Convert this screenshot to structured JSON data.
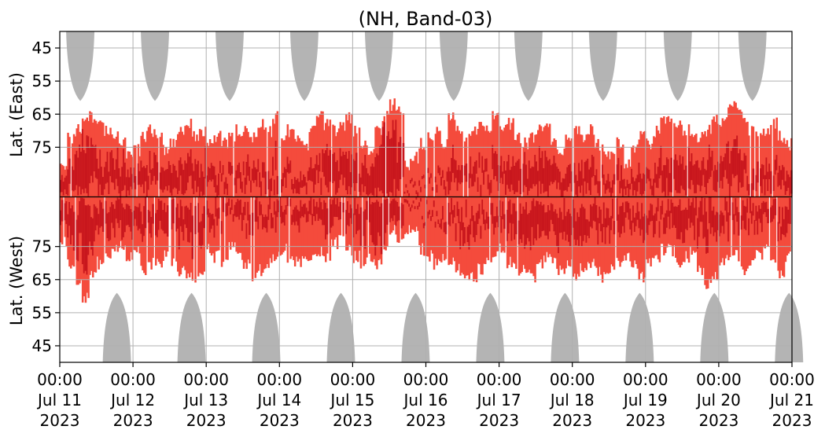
{
  "chart_data": {
    "type": "heatmap",
    "title": "(NH, Band-03)",
    "y_upper_label": "Lat. (East)",
    "y_lower_label": "Lat. (West)",
    "y_upper_ticks": [
      "45",
      "55",
      "65",
      "75"
    ],
    "y_lower_ticks": [
      "75",
      "65",
      "55",
      "45"
    ],
    "y_upper_tick_values": [
      45,
      55,
      65,
      75
    ],
    "y_lower_tick_values": [
      75,
      65,
      55,
      45
    ],
    "x_ticks": [
      {
        "time": "00:00",
        "date": "Jul 11",
        "year": "2023"
      },
      {
        "time": "00:00",
        "date": "Jul 12",
        "year": "2023"
      },
      {
        "time": "00:00",
        "date": "Jul 13",
        "year": "2023"
      },
      {
        "time": "00:00",
        "date": "Jul 14",
        "year": "2023"
      },
      {
        "time": "00:00",
        "date": "Jul 15",
        "year": "2023"
      },
      {
        "time": "00:00",
        "date": "Jul 16",
        "year": "2023"
      },
      {
        "time": "00:00",
        "date": "Jul 17",
        "year": "2023"
      },
      {
        "time": "00:00",
        "date": "Jul 18",
        "year": "2023"
      },
      {
        "time": "00:00",
        "date": "Jul 19",
        "year": "2023"
      },
      {
        "time": "00:00",
        "date": "Jul 20",
        "year": "2023"
      },
      {
        "time": "00:00",
        "date": "Jul 21",
        "year": "2023"
      }
    ],
    "x_range": [
      "2023-07-11 00:00",
      "2023-07-21 00:00"
    ],
    "y_range_each_panel": [
      40,
      90
    ],
    "grid": true,
    "colors": {
      "strong": "#c8161d",
      "weak": "#f44b3c",
      "daylight_mask": "#b4b4b4",
      "grid": "#b0b0b0"
    },
    "daylight_mask_east_centers": [
      "Jul 11 06:00",
      "Jul 12 06:30",
      "Jul 13 07:00",
      "Jul 14 07:30",
      "Jul 15 08:00",
      "Jul 16 08:30",
      "Jul 17 09:00",
      "Jul 18 09:30",
      "Jul 19 10:00",
      "Jul 20 10:30"
    ],
    "daylight_mask_west_centers": [
      "Jul 11 18:00",
      "Jul 12 18:30",
      "Jul 13 19:00",
      "Jul 14 19:30",
      "Jul 15 20:00",
      "Jul 16 20:30",
      "Jul 17 21:00",
      "Jul 18 21:30",
      "Jul 19 22:00",
      "Jul 20 22:30"
    ],
    "activity_profile": {
      "day_offsets": [
        0.0,
        0.1,
        0.2,
        0.3,
        0.4,
        0.5,
        0.6,
        0.7,
        0.8,
        0.9,
        1.0,
        1.1,
        1.2,
        1.3,
        1.4,
        1.5,
        1.6,
        1.7,
        1.8,
        1.9,
        2.0,
        2.1,
        2.2,
        2.3,
        2.4,
        2.5,
        2.6,
        2.7,
        2.8,
        2.9,
        3.0,
        3.1,
        3.2,
        3.3,
        3.4,
        3.5,
        3.6,
        3.7,
        3.8,
        3.9,
        4.0,
        4.1,
        4.2,
        4.3,
        4.4,
        4.5,
        4.6,
        4.7,
        4.8,
        4.9,
        5.0,
        5.1,
        5.2,
        5.3,
        5.4,
        5.5,
        5.6,
        5.7,
        5.8,
        5.9,
        6.0,
        6.1,
        6.2,
        6.3,
        6.4,
        6.5,
        6.6,
        6.7,
        6.8,
        6.9,
        7.0,
        7.1,
        7.2,
        7.3,
        7.4,
        7.5,
        7.6,
        7.7,
        7.8,
        7.9,
        8.0,
        8.1,
        8.2,
        8.3,
        8.4,
        8.5,
        8.6,
        8.7,
        8.8,
        8.9,
        9.0,
        9.1,
        9.2,
        9.3,
        9.4,
        9.5,
        9.6,
        9.7,
        9.8,
        9.9,
        10.0
      ],
      "east_min_lat": [
        80,
        72,
        70,
        68,
        66,
        68,
        70,
        72,
        74,
        78,
        76,
        72,
        70,
        72,
        76,
        74,
        70,
        68,
        72,
        70,
        74,
        72,
        74,
        72,
        70,
        70,
        72,
        68,
        70,
        66,
        72,
        70,
        72,
        74,
        70,
        66,
        68,
        70,
        68,
        66,
        70,
        74,
        76,
        70,
        66,
        62,
        64,
        80,
        78,
        74,
        72,
        70,
        74,
        66,
        70,
        72,
        70,
        68,
        70,
        66,
        70,
        68,
        72,
        74,
        72,
        70,
        68,
        74,
        76,
        72,
        70,
        72,
        70,
        74,
        76,
        78,
        74,
        80,
        76,
        72,
        74,
        70,
        66,
        66,
        68,
        70,
        70,
        72,
        70,
        66,
        68,
        64,
        62,
        66,
        70,
        72,
        70,
        68,
        72,
        74,
        76
      ],
      "west_min_lat": [
        76,
        70,
        64,
        60,
        66,
        70,
        72,
        74,
        76,
        72,
        74,
        68,
        70,
        70,
        72,
        70,
        68,
        66,
        66,
        68,
        74,
        72,
        70,
        76,
        72,
        70,
        66,
        68,
        70,
        72,
        74,
        72,
        70,
        72,
        72,
        74,
        72,
        76,
        78,
        74,
        72,
        70,
        72,
        70,
        74,
        80,
        78,
        80,
        80,
        74,
        72,
        70,
        72,
        70,
        68,
        66,
        66,
        68,
        70,
        72,
        74,
        70,
        68,
        68,
        66,
        70,
        72,
        70,
        68,
        70,
        66,
        68,
        70,
        68,
        66,
        68,
        70,
        72,
        70,
        66,
        70,
        72,
        74,
        74,
        70,
        72,
        74,
        68,
        64,
        66,
        70,
        72,
        72,
        68,
        70,
        72,
        74,
        70,
        66,
        72,
        74
      ],
      "strong_fraction": [
        0.5,
        0.5,
        0.6,
        0.7,
        0.5,
        0.4,
        0.5,
        0.5,
        0.6,
        0.5,
        0.4,
        0.4,
        0.3,
        0.4,
        0.5,
        0.4,
        0.4,
        0.4,
        0.5,
        0.4,
        0.3,
        0.3,
        0.2,
        0.2,
        0.3,
        0.3,
        0.3,
        0.2,
        0.3,
        0.3,
        0.3,
        0.2,
        0.3,
        0.2,
        0.3,
        0.3,
        0.5,
        0.5,
        0.4,
        0.4,
        0.4,
        0.5,
        0.6,
        0.7,
        0.8,
        0.8,
        0.5,
        0.1,
        0.1,
        0.1,
        0.1,
        0.1,
        0.2,
        0.3,
        0.3,
        0.3,
        0.3,
        0.2,
        0.2,
        0.3,
        0.3,
        0.4,
        0.5,
        0.5,
        0.5,
        0.5,
        0.5,
        0.4,
        0.4,
        0.4,
        0.4,
        0.5,
        0.4,
        0.3,
        0.3,
        0.3,
        0.4,
        0.3,
        0.3,
        0.3,
        0.3,
        0.3,
        0.4,
        0.4,
        0.5,
        0.5,
        0.5,
        0.4,
        0.4,
        0.3,
        0.3,
        0.4,
        0.4,
        0.3,
        0.3,
        0.4,
        0.3,
        0.3,
        0.3,
        0.4,
        0.4
      ]
    }
  }
}
